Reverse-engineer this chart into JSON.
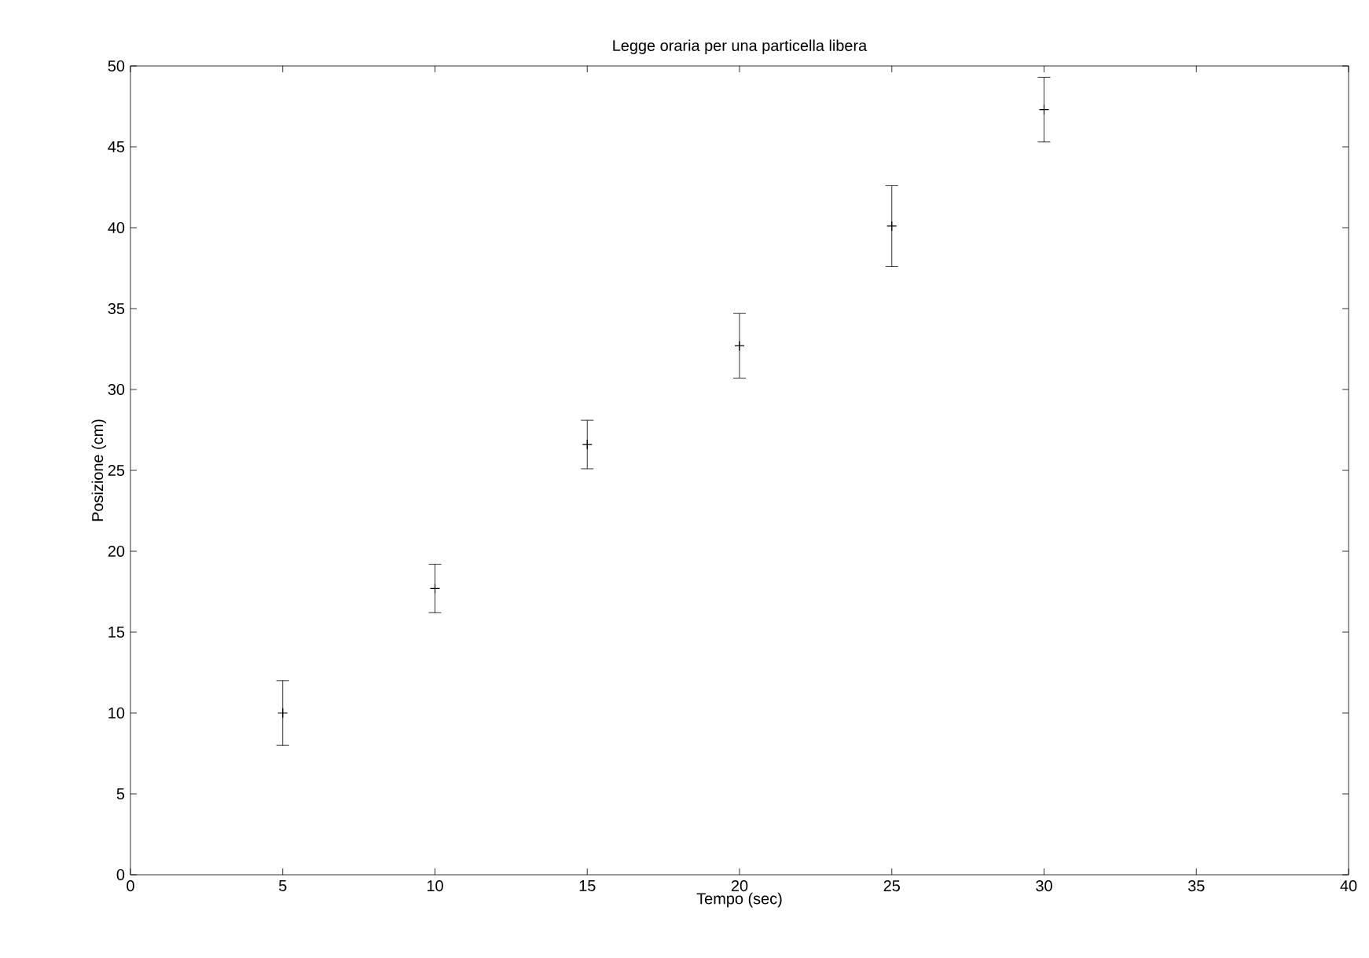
{
  "chart_data": {
    "type": "scatter",
    "title": "Legge oraria per una particella libera",
    "xlabel": "Tempo (sec)",
    "ylabel": "Posizione (cm)",
    "x": [
      5,
      10,
      15,
      20,
      25,
      30
    ],
    "values": [
      10.0,
      17.7,
      26.6,
      32.7,
      40.1,
      47.3
    ],
    "errors": [
      2,
      1.5,
      1.5,
      2,
      2.5,
      2
    ],
    "color": "#000000",
    "marker": "cross",
    "xlim": [
      0,
      40
    ],
    "xticks": [
      0,
      5,
      10,
      15,
      20,
      25,
      30,
      35,
      40
    ],
    "ylim": [
      0,
      50
    ],
    "yticks": [
      0,
      5,
      10,
      15,
      20,
      25,
      30,
      35,
      40,
      45,
      50
    ]
  }
}
